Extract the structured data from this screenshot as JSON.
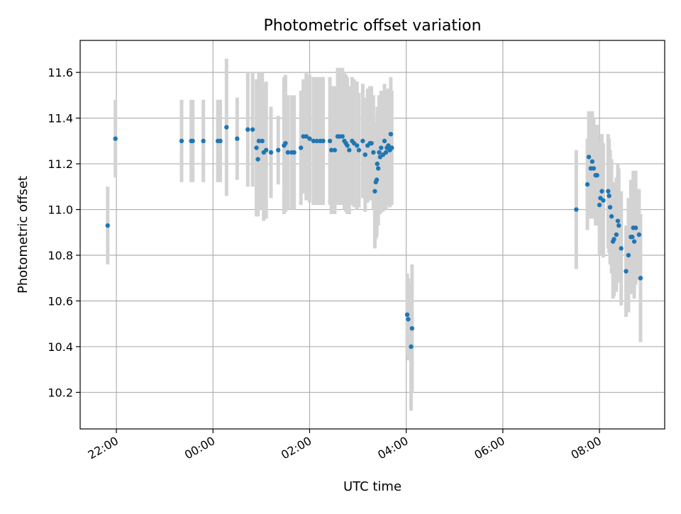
{
  "chart_data": {
    "type": "scatter",
    "title": "Photometric offset variation",
    "xlabel": "UTC time",
    "ylabel": "Photometric offset",
    "x_unit": "UTC time (hours; values beyond 24 are the following day)",
    "xlim": [
      21.25,
      33.35
    ],
    "ylim": [
      10.04,
      11.74
    ],
    "x_ticks": [
      {
        "value": 22,
        "label": "22:00"
      },
      {
        "value": 24,
        "label": "00:00"
      },
      {
        "value": 26,
        "label": "02:00"
      },
      {
        "value": 28,
        "label": "04:00"
      },
      {
        "value": 30,
        "label": "06:00"
      },
      {
        "value": 32,
        "label": "08:00"
      }
    ],
    "y_ticks": [
      {
        "value": 10.2,
        "label": "10.2"
      },
      {
        "value": 10.4,
        "label": "10.4"
      },
      {
        "value": 10.6,
        "label": "10.6"
      },
      {
        "value": 10.8,
        "label": "10.8"
      },
      {
        "value": 11.0,
        "label": "11.0"
      },
      {
        "value": 11.2,
        "label": "11.2"
      },
      {
        "value": 11.4,
        "label": "11.4"
      },
      {
        "value": 11.6,
        "label": "11.6"
      }
    ],
    "grid": true,
    "colors": {
      "points": "#1f77b4",
      "errorbars": "#d3d3d3",
      "grid": "#b0b0b0"
    },
    "series": [
      {
        "points": [
          [
            21.82,
            10.93,
            0.17
          ],
          [
            21.98,
            11.31,
            0.17
          ],
          [
            23.35,
            11.3,
            0.18
          ],
          [
            23.55,
            11.3,
            0.18
          ],
          [
            23.58,
            11.3,
            0.18
          ],
          [
            23.8,
            11.3,
            0.18
          ],
          [
            24.1,
            11.3,
            0.18
          ],
          [
            24.15,
            11.3,
            0.18
          ],
          [
            24.28,
            11.36,
            0.3
          ],
          [
            24.5,
            11.31,
            0.18
          ],
          [
            24.72,
            11.35,
            0.25
          ],
          [
            24.82,
            11.35,
            0.25
          ],
          [
            24.9,
            11.27,
            0.3
          ],
          [
            24.93,
            11.22,
            0.25
          ],
          [
            24.95,
            11.3,
            0.3
          ],
          [
            25.02,
            11.3,
            0.3
          ],
          [
            25.05,
            11.25,
            0.3
          ],
          [
            25.1,
            11.26,
            0.3
          ],
          [
            25.2,
            11.25,
            0.2
          ],
          [
            25.35,
            11.26,
            0.15
          ],
          [
            25.47,
            11.28,
            0.3
          ],
          [
            25.5,
            11.29,
            0.3
          ],
          [
            25.55,
            11.25,
            0.25
          ],
          [
            25.63,
            11.25,
            0.25
          ],
          [
            25.68,
            11.25,
            0.25
          ],
          [
            25.82,
            11.27,
            0.25
          ],
          [
            25.87,
            11.32,
            0.25
          ],
          [
            25.93,
            11.32,
            0.28
          ],
          [
            26.0,
            11.31,
            0.28
          ],
          [
            26.08,
            11.3,
            0.28
          ],
          [
            26.15,
            11.3,
            0.28
          ],
          [
            26.22,
            11.3,
            0.28
          ],
          [
            26.28,
            11.3,
            0.28
          ],
          [
            26.42,
            11.3,
            0.28
          ],
          [
            26.45,
            11.26,
            0.28
          ],
          [
            26.52,
            11.26,
            0.28
          ],
          [
            26.58,
            11.32,
            0.3
          ],
          [
            26.62,
            11.32,
            0.3
          ],
          [
            26.68,
            11.32,
            0.3
          ],
          [
            26.72,
            11.3,
            0.3
          ],
          [
            26.75,
            11.29,
            0.3
          ],
          [
            26.78,
            11.28,
            0.3
          ],
          [
            26.82,
            11.26,
            0.28
          ],
          [
            26.88,
            11.3,
            0.28
          ],
          [
            26.92,
            11.29,
            0.28
          ],
          [
            26.98,
            11.28,
            0.28
          ],
          [
            27.02,
            11.26,
            0.25
          ],
          [
            27.1,
            11.3,
            0.25
          ],
          [
            27.15,
            11.24,
            0.25
          ],
          [
            27.2,
            11.28,
            0.25
          ],
          [
            27.25,
            11.29,
            0.25
          ],
          [
            27.28,
            11.29,
            0.25
          ],
          [
            27.32,
            11.25,
            0.25
          ],
          [
            27.35,
            11.08,
            0.25
          ],
          [
            27.37,
            11.12,
            0.25
          ],
          [
            27.39,
            11.13,
            0.25
          ],
          [
            27.4,
            11.2,
            0.25
          ],
          [
            27.42,
            11.18,
            0.25
          ],
          [
            27.44,
            11.25,
            0.25
          ],
          [
            27.46,
            11.23,
            0.25
          ],
          [
            27.48,
            11.27,
            0.25
          ],
          [
            27.52,
            11.24,
            0.25
          ],
          [
            27.55,
            11.3,
            0.25
          ],
          [
            27.58,
            11.25,
            0.25
          ],
          [
            27.6,
            11.27,
            0.25
          ],
          [
            27.63,
            11.28,
            0.25
          ],
          [
            27.66,
            11.26,
            0.25
          ],
          [
            27.68,
            11.33,
            0.25
          ],
          [
            27.7,
            11.27,
            0.25
          ],
          [
            28.02,
            10.54,
            0.18
          ],
          [
            28.04,
            10.52,
            0.18
          ],
          [
            28.1,
            10.4,
            0.28
          ],
          [
            28.12,
            10.48,
            0.28
          ],
          [
            31.52,
            11.0,
            0.26
          ],
          [
            31.75,
            11.11,
            0.2
          ],
          [
            31.78,
            11.23,
            0.2
          ],
          [
            31.82,
            11.18,
            0.22
          ],
          [
            31.85,
            11.21,
            0.22
          ],
          [
            31.88,
            11.18,
            0.22
          ],
          [
            31.92,
            11.15,
            0.22
          ],
          [
            31.95,
            11.15,
            0.22
          ],
          [
            32.0,
            11.02,
            0.22
          ],
          [
            32.02,
            11.05,
            0.25
          ],
          [
            32.05,
            11.08,
            0.25
          ],
          [
            32.08,
            11.04,
            0.25
          ],
          [
            32.18,
            11.08,
            0.25
          ],
          [
            32.2,
            11.06,
            0.25
          ],
          [
            32.22,
            11.01,
            0.25
          ],
          [
            32.25,
            10.97,
            0.25
          ],
          [
            32.28,
            10.86,
            0.25
          ],
          [
            32.3,
            10.87,
            0.25
          ],
          [
            32.35,
            10.89,
            0.25
          ],
          [
            32.38,
            10.95,
            0.25
          ],
          [
            32.4,
            10.93,
            0.25
          ],
          [
            32.45,
            10.83,
            0.25
          ],
          [
            32.55,
            10.73,
            0.2
          ],
          [
            32.6,
            10.8,
            0.25
          ],
          [
            32.65,
            10.88,
            0.25
          ],
          [
            32.68,
            10.88,
            0.25
          ],
          [
            32.7,
            10.92,
            0.25
          ],
          [
            32.72,
            10.86,
            0.25
          ],
          [
            32.75,
            10.92,
            0.25
          ],
          [
            32.82,
            10.89,
            0.2
          ],
          [
            32.85,
            10.7,
            0.28
          ]
        ]
      }
    ]
  }
}
